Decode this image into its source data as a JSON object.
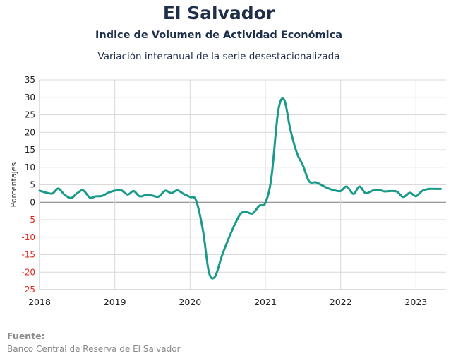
{
  "header": {
    "title": "El Salvador",
    "subtitle": "Indice de Volumen de  Actividad Económica",
    "subtitle2": "Variación interanual de la serie desestacionalizada"
  },
  "footer": {
    "source_label": "Fuente:",
    "source_text": "Banco Central de Reserva de El Salvador"
  },
  "colors": {
    "line": "#1a9a8a",
    "negative_tick": "#e0261b",
    "positive_tick": "#222222",
    "grid": "#d9d9d9",
    "title": "#1f2f4a"
  },
  "chart_data": {
    "type": "line",
    "title": "Indice de Volumen de  Actividad Económica",
    "subtitle": "Variación interanual de la serie desestacionalizada",
    "xlabel": "",
    "ylabel": "Porcentajes",
    "ylim": [
      -25,
      35
    ],
    "yticks": [
      35,
      30,
      25,
      20,
      15,
      10,
      5,
      0,
      -5,
      -10,
      -15,
      -20,
      -25
    ],
    "xlim": [
      2018.0,
      2023.4
    ],
    "xticks": [
      "2018",
      "2019",
      "2020",
      "2021",
      "2022",
      "2023"
    ],
    "grid": true,
    "series": [
      {
        "x": [
          2018.0,
          2018.08,
          2018.17,
          2018.25,
          2018.33,
          2018.42,
          2018.5,
          2018.58,
          2018.67,
          2018.75,
          2018.83,
          2018.92,
          2019.0,
          2019.08,
          2019.17,
          2019.25,
          2019.33,
          2019.42,
          2019.5,
          2019.58,
          2019.67,
          2019.75,
          2019.83,
          2019.92,
          2020.0,
          2020.08,
          2020.17,
          2020.25,
          2020.33,
          2020.42,
          2020.5,
          2020.58,
          2020.67,
          2020.75,
          2020.83,
          2020.92,
          2021.0,
          2021.08,
          2021.17,
          2021.25,
          2021.33,
          2021.42,
          2021.5,
          2021.58,
          2021.67,
          2021.75,
          2021.83,
          2021.92,
          2022.0,
          2022.08,
          2022.17,
          2022.25,
          2022.33,
          2022.42,
          2022.5,
          2022.58,
          2022.67,
          2022.75,
          2022.83,
          2022.92,
          2023.0,
          2023.08,
          2023.17,
          2023.25,
          2023.33
        ],
        "values": [
          3.3,
          2.8,
          2.5,
          3.9,
          2.2,
          1.2,
          2.6,
          3.4,
          1.3,
          1.7,
          1.8,
          2.8,
          3.3,
          3.5,
          2.2,
          3.2,
          1.7,
          2.1,
          1.9,
          1.6,
          3.3,
          2.6,
          3.4,
          2.3,
          1.5,
          0.5,
          -8.0,
          -20.0,
          -21.3,
          -15.5,
          -11.0,
          -7.0,
          -3.3,
          -2.8,
          -3.2,
          -1.0,
          -0.2,
          7.0,
          26.0,
          29.3,
          21.0,
          14.0,
          10.5,
          6.0,
          5.7,
          4.9,
          4.0,
          3.4,
          3.2,
          4.5,
          2.4,
          4.5,
          2.6,
          3.3,
          3.6,
          3.1,
          3.2,
          3.0,
          1.5,
          2.7,
          1.7,
          3.2,
          3.8,
          3.8,
          3.8
        ]
      }
    ]
  }
}
